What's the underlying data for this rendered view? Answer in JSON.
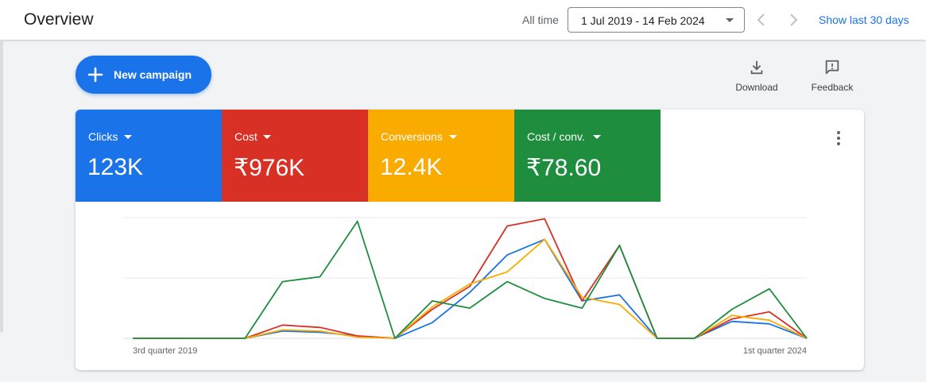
{
  "header": {
    "title": "Overview",
    "range_label": "All time",
    "date_range": "1 Jul 2019 - 14 Feb 2024",
    "show_last": "Show last 30 days"
  },
  "actions": {
    "new_campaign": "New campaign",
    "download": "Download",
    "feedback": "Feedback"
  },
  "metrics": [
    {
      "name": "Clicks",
      "value": "123K",
      "color": "#1a73e8"
    },
    {
      "name": "Cost",
      "value": "₹976K",
      "color": "#d93025"
    },
    {
      "name": "Conversions",
      "value": "12.4K",
      "color": "#f9ab00"
    },
    {
      "name": "Cost / conv.",
      "value": "₹78.60",
      "color": "#1e8e3e"
    }
  ],
  "chart_data": {
    "type": "line",
    "x": [
      "2019-Q3",
      "2019-Q4",
      "2020-Q1",
      "2020-Q2",
      "2020-Q3",
      "2020-Q4",
      "2021-Q1",
      "2021-Q2",
      "2021-Q3",
      "2021-Q4",
      "2022-Q1",
      "2022-Q2",
      "2022-Q3",
      "2022-Q4",
      "2023-Q1",
      "2023-Q2",
      "2023-Q3",
      "2023-Q4",
      "2024-Q1"
    ],
    "x_tick_labels": [
      "3rd quarter 2019",
      "1st quarter 2024"
    ],
    "ylim": [
      0,
      100
    ],
    "grid": true,
    "series": [
      {
        "color": "#1a73e8",
        "values": [
          0,
          0,
          0,
          0,
          6,
          5,
          2,
          0,
          13,
          38,
          69,
          82,
          31,
          36,
          0,
          0,
          14,
          12,
          0
        ]
      },
      {
        "color": "#d93025",
        "values": [
          0,
          0,
          0,
          0,
          11,
          9,
          2,
          0,
          24,
          43,
          93,
          99,
          31,
          77,
          0,
          0,
          16,
          22,
          0
        ]
      },
      {
        "color": "#f9ab00",
        "values": [
          0,
          0,
          0,
          0,
          7,
          6,
          1,
          0,
          26,
          45,
          55,
          82,
          34,
          28,
          0,
          0,
          19,
          15,
          0
        ]
      },
      {
        "color": "#1e8e3e",
        "values": [
          0,
          0,
          0,
          0,
          47,
          51,
          97,
          0,
          31,
          25,
          47,
          33,
          25,
          77,
          0,
          0,
          24,
          41,
          0
        ]
      }
    ]
  }
}
